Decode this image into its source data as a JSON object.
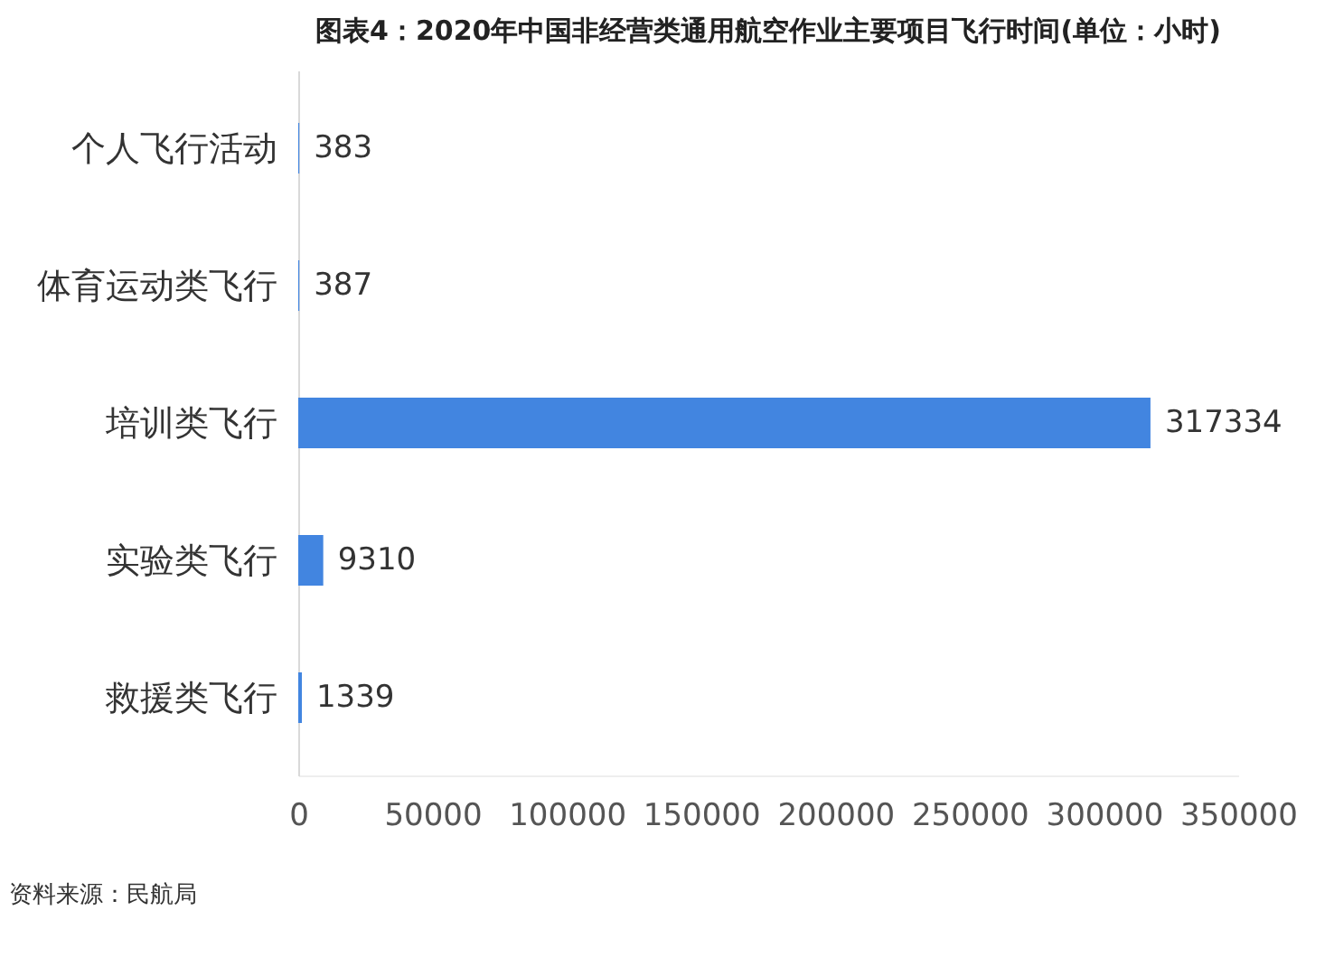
{
  "chart_data": {
    "type": "bar",
    "orientation": "horizontal",
    "title": "图表4：2020年中国非经营类通用航空作业主要项目飞行时间(单位：小时)",
    "categories": [
      "个人飞行活动",
      "体育运动类飞行",
      "培训类飞行",
      "实验类飞行",
      "救援类飞行"
    ],
    "values": [
      383,
      387,
      317334,
      9310,
      1339
    ],
    "color": "#4285e0",
    "xlim": [
      0,
      350000
    ],
    "xticks": [
      0,
      50000,
      100000,
      150000,
      200000,
      250000,
      300000,
      350000
    ],
    "data_labels": true,
    "grid": false,
    "annotations": [
      "资料来源：民航局"
    ]
  }
}
